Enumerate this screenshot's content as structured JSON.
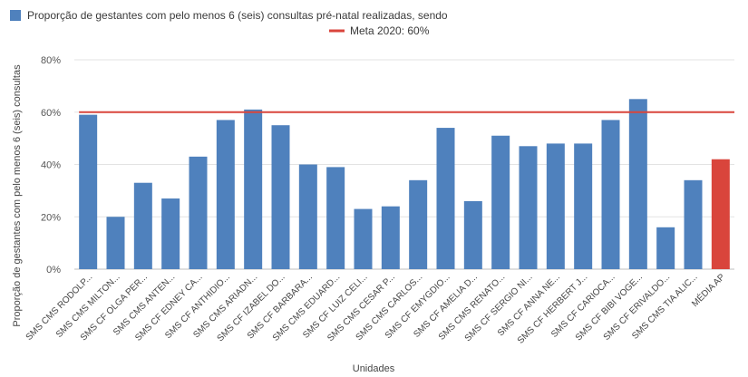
{
  "chart_data": {
    "type": "bar",
    "title": "",
    "xlabel": "Unidades",
    "ylabel": "Proporção de gestantes com pelo menos 6 (seis) consultas",
    "ylim": [
      0,
      80
    ],
    "yticks": [
      "0%",
      "20%",
      "40%",
      "60%",
      "80%"
    ],
    "grid": true,
    "legend": [
      {
        "label": "Proporção de gestantes com pelo menos 6 (seis) consultas pré-natal realizadas, sendo",
        "color": "#4f81bd",
        "kind": "bar"
      },
      {
        "label": "Meta 2020: 60%",
        "color": "#d9453c",
        "kind": "line"
      }
    ],
    "categories": [
      "SMS CMS RODOLP...",
      "SMS CMS MILTON...",
      "SMS CF OLGA PER...",
      "SMS CMS ANTEN...",
      "SMS CF EDNEY CA...",
      "SMS CF ANTHIDIO...",
      "SMS CMS ARIADN...",
      "SMS CF IZABEL DO...",
      "SMS CF BARBARA...",
      "SMS CMS EDUARD...",
      "SMS CF LUIZ CELI...",
      "SMS CMS CESAR P...",
      "SMS CMS CARLOS...",
      "SMS CF EMYGDIO...",
      "SMS CF AMELIA D...",
      "SMS CMS RENATO...",
      "SMS CF SERGIO NI...",
      "SMS CF ANNA NE...",
      "SMS CF HERBERT J...",
      "SMS CF CARIOCA...",
      "SMS CF BIBI VOGE...",
      "SMS CF ERIVALDO...",
      "SMS CMS TIA ALIC...",
      "MÉDIA AP"
    ],
    "series": [
      {
        "name": "Proporção de gestantes com pelo menos 6 (seis) consultas pré-natal realizadas, sendo",
        "values": [
          59,
          20,
          33,
          27,
          43,
          57,
          61,
          55,
          40,
          39,
          23,
          24,
          34,
          54,
          26,
          51,
          47,
          48,
          48,
          57,
          65,
          16,
          34,
          42
        ],
        "color": "#4f81bd",
        "highlight_index": 23,
        "highlight_color": "#d9453c"
      }
    ],
    "target_line": {
      "name": "Meta 2020: 60%",
      "value": 60,
      "color": "#d9453c"
    }
  }
}
